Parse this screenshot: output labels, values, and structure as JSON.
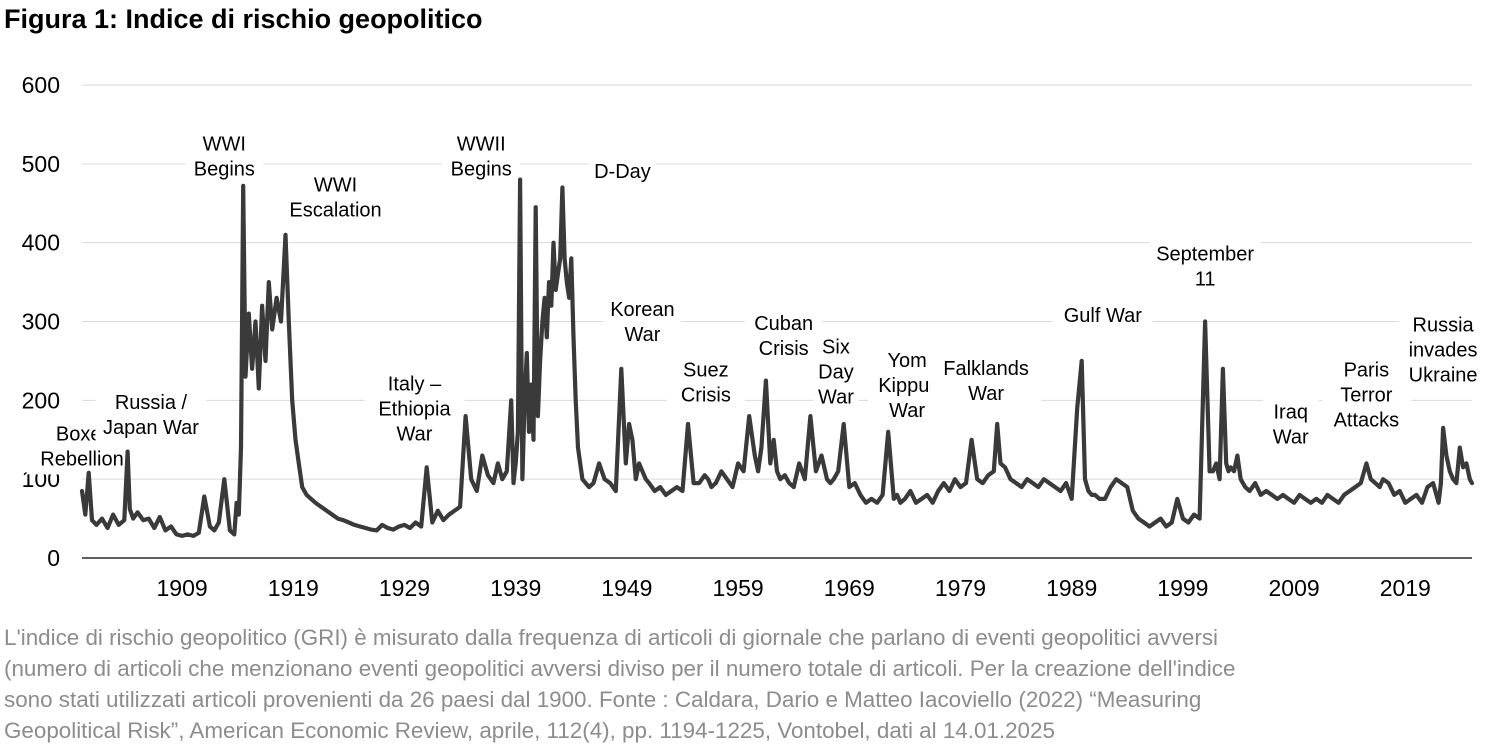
{
  "title": "Figura 1: Indice di rischio geopolitico",
  "chart_data": {
    "type": "line",
    "title": "Figura 1: Indice di rischio geopolitico",
    "xlabel": "",
    "ylabel": "",
    "ylim": [
      0,
      600
    ],
    "xlim": [
      1900,
      2025
    ],
    "grid": true,
    "y_ticks": [
      "0",
      "100",
      "200",
      "300",
      "400",
      "500",
      "600"
    ],
    "x_ticks": [
      "1909",
      "1919",
      "1929",
      "1939",
      "1949",
      "1959",
      "1969",
      "1979",
      "1989",
      "1999",
      "2009",
      "2019"
    ],
    "line_color": "#3a3a3a",
    "grid_color": "#d9d9d9",
    "series": [
      {
        "x": [
          1900.0,
          1900.3,
          1900.6,
          1900.9,
          1901.3,
          1901.8,
          1902.3,
          1902.8,
          1903.3,
          1903.8,
          1904.1,
          1904.3,
          1904.6,
          1905.0,
          1905.5,
          1906.0,
          1906.5,
          1907.0,
          1907.5,
          1908.0,
          1908.5,
          1909.0,
          1909.5,
          1910.0,
          1910.5,
          1911.0,
          1911.5,
          1911.9,
          1912.3,
          1912.8,
          1913.3,
          1913.7,
          1913.9,
          1914.1,
          1914.3,
          1914.5,
          1914.7,
          1915.0,
          1915.3,
          1915.6,
          1915.9,
          1916.2,
          1916.5,
          1916.8,
          1917.1,
          1917.5,
          1917.9,
          1918.3,
          1918.6,
          1918.9,
          1919.2,
          1919.5,
          1919.8,
          1920.2,
          1920.6,
          1921.0,
          1921.5,
          1922.0,
          1922.5,
          1923.0,
          1923.5,
          1924.0,
          1924.5,
          1925.0,
          1925.5,
          1926.0,
          1926.5,
          1927.0,
          1927.5,
          1928.0,
          1928.5,
          1929.0,
          1929.5,
          1930.0,
          1930.5,
          1931.0,
          1931.5,
          1932.0,
          1932.5,
          1933.0,
          1933.5,
          1934.0,
          1934.5,
          1935.0,
          1935.5,
          1936.0,
          1936.5,
          1937.0,
          1937.4,
          1937.8,
          1938.2,
          1938.6,
          1938.8,
          1939.0,
          1939.2,
          1939.4,
          1939.6,
          1939.8,
          1940.0,
          1940.2,
          1940.4,
          1940.6,
          1940.8,
          1941.0,
          1941.2,
          1941.4,
          1941.6,
          1941.8,
          1942.0,
          1942.2,
          1942.4,
          1942.6,
          1942.8,
          1943.0,
          1943.2,
          1943.4,
          1943.6,
          1943.8,
          1944.0,
          1944.2,
          1944.4,
          1944.6,
          1944.8,
          1945.0,
          1945.3,
          1945.6,
          1946.0,
          1946.5,
          1947.0,
          1947.5,
          1948.0,
          1948.5,
          1948.9,
          1949.2,
          1949.5,
          1949.8,
          1950.1,
          1950.4,
          1950.7,
          1951.0,
          1951.5,
          1952.0,
          1952.5,
          1953.0,
          1953.5,
          1954.0,
          1954.5,
          1955.0,
          1955.5,
          1956.0,
          1956.3,
          1956.6,
          1957.0,
          1957.5,
          1958.0,
          1958.5,
          1959.0,
          1959.5,
          1960.0,
          1960.5,
          1960.8,
          1961.1,
          1961.5,
          1961.9,
          1962.2,
          1962.5,
          1962.8,
          1963.2,
          1963.6,
          1964.0,
          1964.5,
          1965.0,
          1965.5,
          1966.0,
          1966.5,
          1967.0,
          1967.3,
          1967.6,
          1968.0,
          1968.5,
          1969.0,
          1969.5,
          1970.0,
          1970.5,
          1971.0,
          1971.5,
          1972.0,
          1972.5,
          1973.0,
          1973.3,
          1973.6,
          1974.0,
          1974.5,
          1975.0,
          1975.5,
          1976.0,
          1976.5,
          1977.0,
          1977.5,
          1978.0,
          1978.5,
          1979.0,
          1979.5,
          1980.0,
          1980.5,
          1981.0,
          1981.5,
          1982.0,
          1982.3,
          1982.6,
          1983.0,
          1983.5,
          1984.0,
          1984.5,
          1985.0,
          1985.5,
          1986.0,
          1986.5,
          1987.0,
          1987.5,
          1988.0,
          1988.5,
          1989.0,
          1989.5,
          1989.9,
          1990.2,
          1990.5,
          1990.8,
          1991.1,
          1991.5,
          1992.0,
          1992.5,
          1993.0,
          1993.5,
          1994.0,
          1994.5,
          1995.0,
          1995.5,
          1996.0,
          1996.5,
          1997.0,
          1997.5,
          1998.0,
          1998.5,
          1999.0,
          1999.5,
          2000.0,
          2000.5,
          2001.0,
          2001.4,
          2001.7,
          2002.0,
          2002.3,
          2002.6,
          2002.9,
          2003.1,
          2003.3,
          2003.6,
          2003.9,
          2004.2,
          2004.6,
          2005.0,
          2005.5,
          2006.0,
          2006.5,
          2007.0,
          2007.5,
          2008.0,
          2008.5,
          2009.0,
          2009.5,
          2010.0,
          2010.5,
          2011.0,
          2011.5,
          2012.0,
          2012.5,
          2013.0,
          2013.5,
          2014.0,
          2014.5,
          2015.0,
          2015.5,
          2015.9,
          2016.3,
          2016.7,
          2017.0,
          2017.5,
          2018.0,
          2018.5,
          2019.0,
          2019.5,
          2020.0,
          2020.5,
          2021.0,
          2021.5,
          2022.0,
          2022.2,
          2022.4,
          2022.7,
          2023.0,
          2023.3,
          2023.6,
          2023.9,
          2024.2,
          2024.5,
          2024.8,
          2025.0
        ],
        "values": [
          85,
          55,
          108,
          48,
          42,
          50,
          38,
          55,
          42,
          48,
          135,
          62,
          50,
          58,
          48,
          50,
          38,
          52,
          35,
          40,
          30,
          28,
          30,
          28,
          32,
          78,
          40,
          35,
          45,
          100,
          35,
          30,
          70,
          55,
          140,
          472,
          230,
          310,
          240,
          300,
          215,
          320,
          250,
          350,
          290,
          330,
          300,
          410,
          300,
          200,
          150,
          120,
          90,
          80,
          75,
          70,
          65,
          60,
          55,
          50,
          48,
          45,
          42,
          40,
          38,
          36,
          35,
          42,
          38,
          36,
          40,
          42,
          38,
          45,
          40,
          115,
          45,
          60,
          48,
          55,
          60,
          65,
          180,
          100,
          85,
          130,
          105,
          95,
          120,
          100,
          110,
          200,
          95,
          120,
          160,
          480,
          100,
          200,
          260,
          160,
          220,
          150,
          445,
          180,
          250,
          300,
          330,
          280,
          350,
          320,
          400,
          340,
          360,
          380,
          470,
          380,
          350,
          330,
          380,
          280,
          200,
          140,
          120,
          100,
          95,
          90,
          95,
          120,
          100,
          95,
          85,
          240,
          120,
          170,
          150,
          100,
          120,
          110,
          100,
          95,
          85,
          90,
          80,
          85,
          90,
          85,
          170,
          95,
          95,
          105,
          100,
          90,
          95,
          110,
          100,
          90,
          120,
          110,
          180,
          130,
          110,
          140,
          225,
          120,
          150,
          110,
          100,
          105,
          95,
          90,
          120,
          100,
          180,
          110,
          130,
          100,
          95,
          100,
          110,
          170,
          90,
          95,
          80,
          70,
          75,
          70,
          80,
          160,
          75,
          80,
          70,
          75,
          85,
          70,
          75,
          80,
          70,
          85,
          95,
          85,
          100,
          90,
          95,
          150,
          100,
          95,
          105,
          110,
          170,
          120,
          115,
          100,
          95,
          90,
          100,
          95,
          90,
          100,
          95,
          90,
          85,
          95,
          75,
          190,
          250,
          100,
          85,
          80,
          80,
          75,
          75,
          90,
          100,
          95,
          90,
          60,
          50,
          45,
          40,
          45,
          50,
          40,
          45,
          75,
          50,
          45,
          55,
          50,
          300,
          110,
          110,
          120,
          100,
          240,
          120,
          110,
          115,
          110,
          130,
          100,
          90,
          85,
          95,
          80,
          85,
          80,
          75,
          80,
          75,
          70,
          80,
          75,
          70,
          75,
          70,
          80,
          75,
          70,
          80,
          85,
          90,
          95,
          120,
          100,
          95,
          90,
          100,
          95,
          80,
          85,
          70,
          75,
          80,
          70,
          90,
          95,
          70,
          95,
          165,
          130,
          110,
          100,
          95,
          140,
          115,
          120,
          100,
          95
        ]
      }
    ],
    "annotations": [
      {
        "text": "Boxer Rebellion",
        "lines": [
          "Boxer",
          "Rebellion"
        ],
        "x": 1900.0,
        "y": 172
      },
      {
        "text": "Russia / Japan War",
        "lines": [
          "Russia /",
          "Japan War"
        ],
        "x": 1906.2,
        "y": 212
      },
      {
        "text": "WWI Begins",
        "lines": [
          "WWI",
          "Begins"
        ],
        "x": 1912.8,
        "y": 540
      },
      {
        "text": "WWI Escalation",
        "lines": [
          "WWI",
          "Escalation"
        ],
        "x": 1922.8,
        "y": 488
      },
      {
        "text": "Italy – Ethiopia War",
        "lines": [
          "Italy –",
          "Ethiopia",
          "War"
        ],
        "x": 1929.9,
        "y": 235
      },
      {
        "text": "WWII Begins",
        "lines": [
          "WWII",
          "Begins"
        ],
        "x": 1935.9,
        "y": 540
      },
      {
        "text": "D-Day",
        "lines": [
          "D-Day"
        ],
        "x": 1948.6,
        "y": 505
      },
      {
        "text": "Korean War",
        "lines": [
          "Korean",
          "War"
        ],
        "x": 1950.4,
        "y": 330
      },
      {
        "text": "Suez Crisis",
        "lines": [
          "Suez",
          "Crisis"
        ],
        "x": 1956.1,
        "y": 253
      },
      {
        "text": "Cuban Crisis",
        "lines": [
          "Cuban",
          "Crisis"
        ],
        "x": 1963.1,
        "y": 312
      },
      {
        "text": "Six Day War",
        "lines": [
          "Six",
          "Day",
          "War"
        ],
        "x": 1967.8,
        "y": 282
      },
      {
        "text": "Yom Kippur War",
        "lines": [
          "Yom",
          "Kippur",
          "War"
        ],
        "x": 1974.2,
        "y": 265
      },
      {
        "text": "Falklands War",
        "lines": [
          "Falklands",
          "War"
        ],
        "x": 1981.3,
        "y": 255
      },
      {
        "text": "Gulf War",
        "lines": [
          "Gulf War"
        ],
        "x": 1991.8,
        "y": 322
      },
      {
        "text": "September 11",
        "lines": [
          "September",
          "11"
        ],
        "x": 2001.0,
        "y": 400
      },
      {
        "text": "Iraq War",
        "lines": [
          "Iraq",
          "War"
        ],
        "x": 2008.7,
        "y": 200
      },
      {
        "text": "Paris Terror Attacks",
        "lines": [
          "Paris",
          "Terror",
          "Attacks"
        ],
        "x": 2015.5,
        "y": 253
      },
      {
        "text": "Russia invades Ukraine",
        "lines": [
          "Russia",
          "invades",
          "Ukraine"
        ],
        "x": 2022.4,
        "y": 310
      }
    ]
  },
  "footnote": [
    "L'indice di rischio geopolitico (GRI) è misurato dalla frequenza di articoli di giornale che parlano di eventi geopolitici avversi",
    "(numero di articoli che menzionano eventi geopolitici avversi diviso per il numero totale di articoli. Per la creazione dell'indice",
    "sono stati utilizzati articoli provenienti da 26 paesi dal 1900. Fonte : Caldara, Dario e Matteo Iacoviello (2022) “Measuring",
    "Geopolitical Risk”, American Economic Review, aprile, 112(4), pp. 1194-1225, Vontobel, dati al 14.01.2025"
  ]
}
